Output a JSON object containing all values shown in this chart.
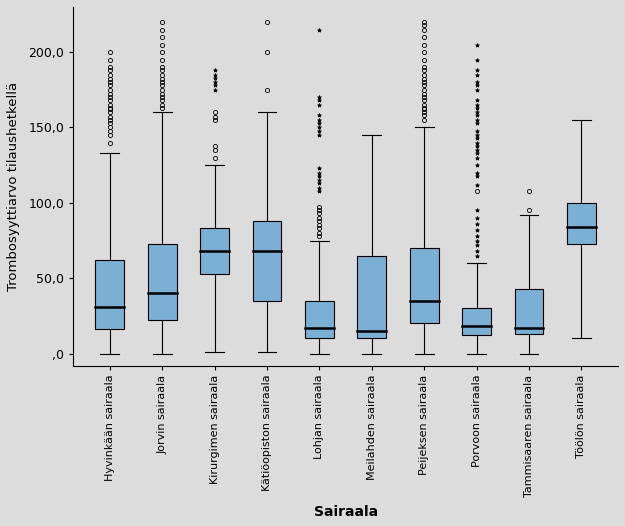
{
  "title": "",
  "ylabel": "Trombosyyttiarvo tilaushetkellä",
  "xlabel": "Sairaala",
  "ylim": [
    -8,
    230
  ],
  "yticks": [
    0.0,
    50.0,
    100.0,
    150.0,
    200.0
  ],
  "ytick_labels": [
    ",0",
    "50,0",
    "100,0",
    "150,0",
    "200,0"
  ],
  "bg_color": "#dcdcdc",
  "box_color": "#7bafd4",
  "hospitals": [
    "Hyvinkään sairaala",
    "Jorvin sairaala",
    "Kirurgimen sairaala",
    "Kätiöopiston sairaala",
    "Lohjan sairaala",
    "Meilahden sairaala",
    "Peijeksen sairaala",
    "Porvoon sairaala",
    "Tammisaaren sairaala",
    "Töölön sairaala"
  ],
  "boxes": [
    {
      "q1": 16,
      "median": 31,
      "q3": 62,
      "whislo": 0,
      "whishi": 133,
      "fliers_o": [
        140,
        145,
        148,
        150,
        153,
        155,
        157,
        160,
        162,
        163,
        165,
        168,
        170,
        172,
        175,
        178,
        180,
        182,
        185,
        188,
        190,
        195,
        200
      ],
      "fliers_star": []
    },
    {
      "q1": 22,
      "median": 40,
      "q3": 73,
      "whislo": 0,
      "whishi": 160,
      "fliers_o": [
        163,
        165,
        168,
        170,
        172,
        175,
        178,
        180,
        182,
        185,
        188,
        190,
        195,
        200,
        205,
        210,
        215,
        220
      ],
      "fliers_star": []
    },
    {
      "q1": 53,
      "median": 68,
      "q3": 83,
      "whislo": 1,
      "whishi": 125,
      "fliers_o": [
        130,
        135,
        138,
        155,
        157,
        160
      ],
      "fliers_star": [
        175,
        178,
        180,
        183,
        185,
        188
      ]
    },
    {
      "q1": 35,
      "median": 68,
      "q3": 88,
      "whislo": 1,
      "whishi": 160,
      "fliers_o": [
        175,
        200,
        220
      ],
      "fliers_star": []
    },
    {
      "q1": 10,
      "median": 17,
      "q3": 35,
      "whislo": 0,
      "whishi": 75,
      "fliers_o": [
        78,
        80,
        83,
        85,
        88,
        90,
        93,
        95,
        97
      ],
      "fliers_star": [
        108,
        110,
        113,
        115,
        118,
        120,
        123,
        145,
        148,
        150,
        153,
        155,
        158,
        165,
        168,
        170,
        215
      ]
    },
    {
      "q1": 10,
      "median": 15,
      "q3": 65,
      "whislo": 0,
      "whishi": 145,
      "fliers_o": [],
      "fliers_star": []
    },
    {
      "q1": 20,
      "median": 35,
      "q3": 70,
      "whislo": 0,
      "whishi": 150,
      "fliers_o": [
        155,
        158,
        160,
        162,
        163,
        165,
        168,
        170,
        172,
        175,
        178,
        180,
        182,
        185,
        188,
        190,
        195,
        200,
        205,
        210,
        215,
        218,
        220
      ],
      "fliers_star": []
    },
    {
      "q1": 12,
      "median": 18,
      "q3": 30,
      "whislo": 0,
      "whishi": 60,
      "fliers_o": [
        108
      ],
      "fliers_star": [
        65,
        68,
        72,
        75,
        78,
        82,
        86,
        90,
        95,
        112,
        118,
        120,
        125,
        130,
        133,
        135,
        138,
        140,
        143,
        145,
        148,
        153,
        155,
        158,
        160,
        163,
        165,
        168,
        175,
        178,
        180,
        185,
        188,
        195,
        205
      ]
    },
    {
      "q1": 13,
      "median": 17,
      "q3": 43,
      "whislo": 0,
      "whishi": 92,
      "fliers_o": [
        95,
        108
      ],
      "fliers_star": []
    },
    {
      "q1": 73,
      "median": 84,
      "q3": 100,
      "whislo": 10,
      "whishi": 155,
      "fliers_o": [],
      "fliers_star": []
    }
  ]
}
